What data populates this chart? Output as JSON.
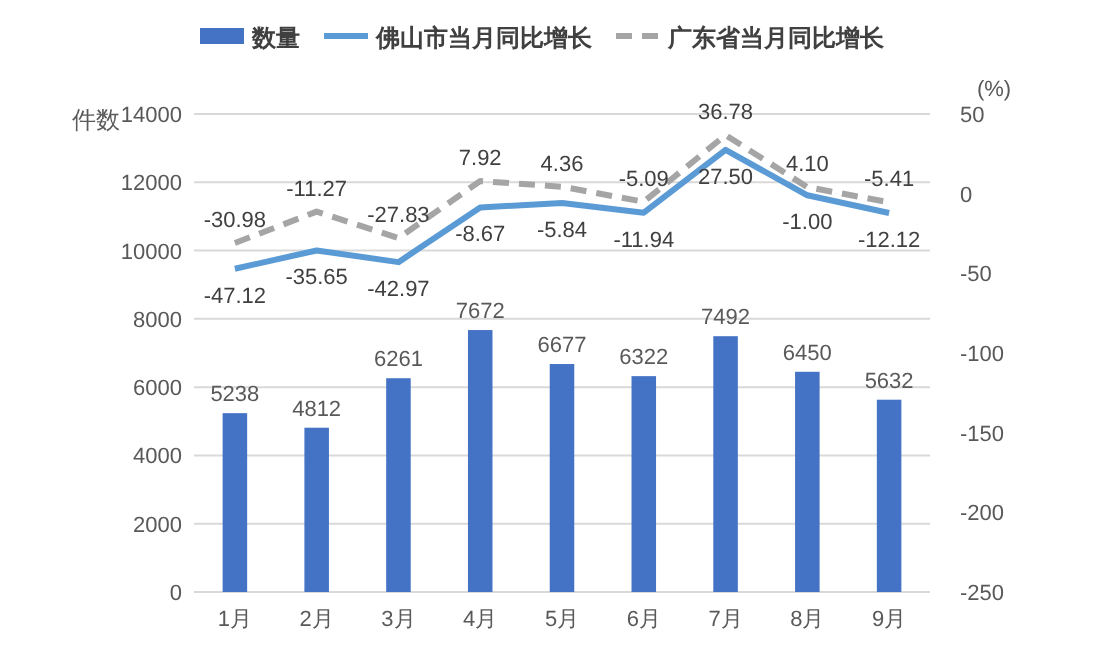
{
  "chart_data": {
    "type": "bar",
    "categories": [
      "1月",
      "2月",
      "3月",
      "4月",
      "5月",
      "6月",
      "7月",
      "8月",
      "9月"
    ],
    "ylabel": "件数",
    "y2label": "(%)",
    "ylim": [
      0,
      14000
    ],
    "yticks": [
      0,
      2000,
      4000,
      6000,
      8000,
      10000,
      12000,
      14000
    ],
    "y2lim": [
      -250,
      50
    ],
    "y2ticks": [
      -250,
      -200,
      -150,
      -100,
      -50,
      0,
      50
    ],
    "grid": "y",
    "legend": "top",
    "data_labels": true,
    "line_style": "solid",
    "marker": "none",
    "series": [
      {
        "name": "数量",
        "color": "#4472c4",
        "values": [
          5238,
          4812,
          6261,
          7672,
          6677,
          6322,
          7492,
          6450,
          5632
        ]
      },
      {
        "name": "佛山市当月同比增长",
        "type": "line",
        "axis": "y2",
        "color": "#5b9bd5",
        "values": [
          -47.12,
          -35.65,
          -42.97,
          -8.67,
          -5.84,
          -11.94,
          27.5,
          -1,
          -12.12
        ],
        "value_labels": [
          "-47.12",
          "-35.65",
          "-42.97",
          "-8.67",
          "-5.84",
          "-11.94",
          "27.50",
          "-1.00",
          "-12.12"
        ]
      },
      {
        "name": "广东省当月同比增长",
        "type": "line",
        "axis": "y2",
        "color": "#a5a5a5",
        "line_style": "dashed",
        "values": [
          -30.98,
          -11.27,
          -27.83,
          7.92,
          4.36,
          -5.09,
          36.78,
          4.1,
          -5.41
        ],
        "value_labels": [
          "-30.98",
          "-11.27",
          "-27.83",
          "7.92",
          "4.36",
          "-5.09",
          "36.78",
          "4.10",
          "-5.41"
        ]
      }
    ]
  }
}
